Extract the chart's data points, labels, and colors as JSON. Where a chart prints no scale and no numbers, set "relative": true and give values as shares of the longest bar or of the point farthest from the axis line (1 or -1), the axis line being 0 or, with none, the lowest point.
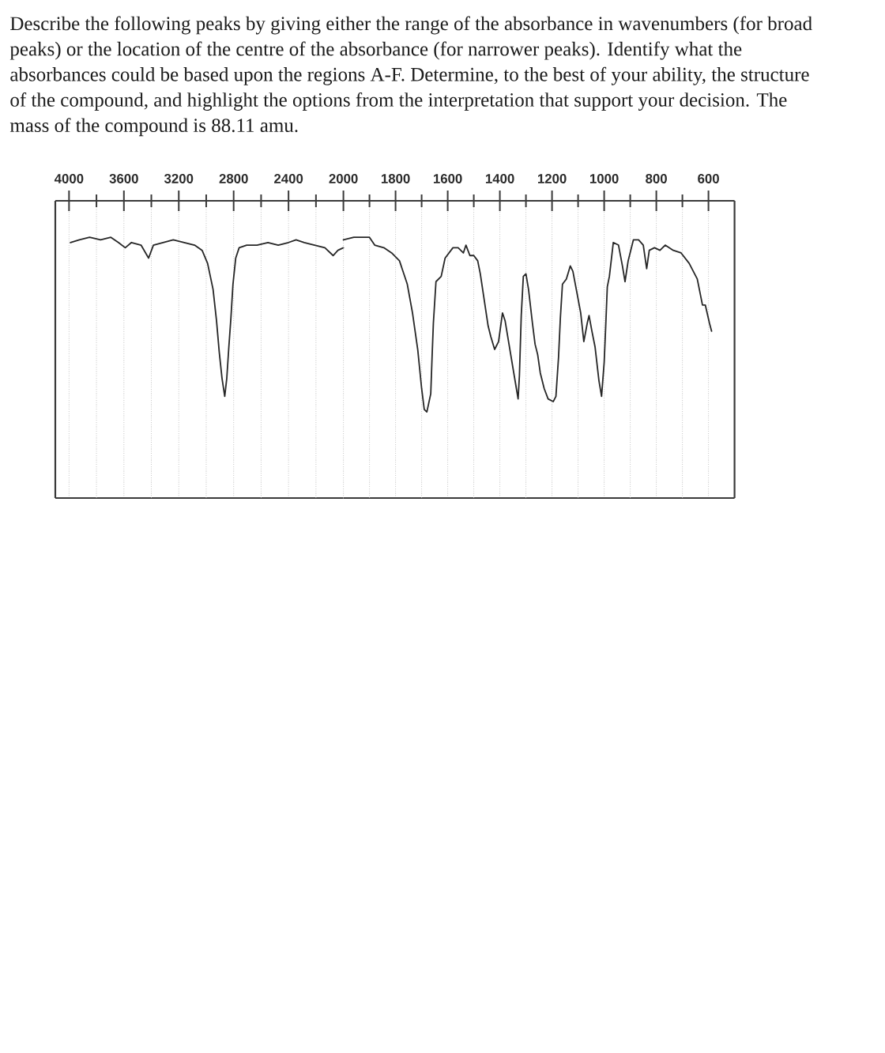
{
  "chart_data": [
    {
      "type": "line",
      "title": "Describe the following peaks by giving either the range of the absorbance in wavenumbers (for broad peaks) or the location of the centre of the absorbance (for narrower peaks). Identify what the absorbances could be based upon the regions A-F. Determine, to the best of your ability, the structure of the compound, and highlight the options from the interpretation that support your decision. The mass of the compound is 88.11 amu.",
      "relative": true,
      "color": "#262626",
      "grid": "x",
      "xlim": [
        4100,
        2000
      ],
      "xticks": [
        4000,
        {
          "value": 3800,
          "label": null
        },
        3600,
        {
          "value": 3400,
          "label": null
        },
        3200,
        {
          "value": 3000,
          "label": null
        },
        2800,
        {
          "value": 2600,
          "label": null
        },
        2400,
        {
          "value": 2200,
          "label": null
        }
      ],
      "x": [
        3990,
        3925,
        3850,
        3770,
        3695,
        3640,
        3590,
        3545,
        3475,
        3420,
        3385,
        3315,
        3240,
        3160,
        3085,
        3030,
        2990,
        2950,
        2925,
        2905,
        2885,
        2865,
        2850,
        2835,
        2820,
        2805,
        2785,
        2760,
        2705,
        2630,
        2550,
        2475,
        2400,
        2345,
        2285,
        2210,
        2135,
        2075,
        2040,
        2000
      ],
      "values": [
        0.98,
        0.99,
        1.0,
        0.99,
        1.0,
        0.98,
        0.96,
        0.98,
        0.97,
        0.92,
        0.97,
        0.98,
        0.99,
        0.98,
        0.97,
        0.95,
        0.9,
        0.8,
        0.68,
        0.56,
        0.46,
        0.39,
        0.46,
        0.58,
        0.69,
        0.82,
        0.92,
        0.96,
        0.97,
        0.97,
        0.98,
        0.97,
        0.98,
        0.99,
        0.98,
        0.97,
        0.96,
        0.93,
        0.95,
        0.96
      ]
    },
    {
      "type": "line",
      "relative": true,
      "color": "#262626",
      "grid": "x",
      "xlim": [
        2000,
        500
      ],
      "xticks": [
        2000,
        {
          "value": 1900,
          "label": null
        },
        1800,
        {
          "value": 1700,
          "label": null
        },
        1600,
        {
          "value": 1500,
          "label": null
        },
        1400,
        {
          "value": 1300,
          "label": null
        },
        1200,
        {
          "value": 1100,
          "label": null
        },
        1000,
        {
          "value": 900,
          "label": null
        },
        800,
        {
          "value": 700,
          "label": null
        },
        600
      ],
      "x": [
        2000,
        1960,
        1900,
        1880,
        1845,
        1815,
        1785,
        1755,
        1735,
        1715,
        1700,
        1690,
        1680,
        1665,
        1660,
        1655,
        1645,
        1625,
        1610,
        1580,
        1560,
        1540,
        1530,
        1515,
        1500,
        1485,
        1475,
        1460,
        1445,
        1435,
        1420,
        1405,
        1390,
        1380,
        1365,
        1345,
        1330,
        1325,
        1318,
        1310,
        1300,
        1290,
        1275,
        1265,
        1255,
        1245,
        1230,
        1215,
        1195,
        1185,
        1175,
        1168,
        1160,
        1145,
        1130,
        1120,
        1105,
        1090,
        1078,
        1065,
        1058,
        1047,
        1035,
        1020,
        1010,
        1000,
        994,
        988,
        980,
        965,
        945,
        930,
        920,
        908,
        888,
        868,
        850,
        837,
        827,
        807,
        786,
        766,
        735,
        705,
        674,
        643,
        623,
        612,
        596,
        588
      ],
      "values": [
        0.99,
        1.0,
        1.0,
        0.97,
        0.96,
        0.94,
        0.91,
        0.82,
        0.71,
        0.57,
        0.42,
        0.34,
        0.33,
        0.4,
        0.54,
        0.67,
        0.83,
        0.85,
        0.92,
        0.96,
        0.96,
        0.94,
        0.97,
        0.93,
        0.93,
        0.91,
        0.86,
        0.76,
        0.66,
        0.62,
        0.57,
        0.6,
        0.71,
        0.68,
        0.59,
        0.47,
        0.38,
        0.47,
        0.7,
        0.85,
        0.86,
        0.8,
        0.67,
        0.59,
        0.55,
        0.48,
        0.42,
        0.38,
        0.37,
        0.39,
        0.54,
        0.69,
        0.82,
        0.84,
        0.89,
        0.87,
        0.79,
        0.71,
        0.6,
        0.67,
        0.7,
        0.64,
        0.58,
        0.45,
        0.39,
        0.52,
        0.66,
        0.81,
        0.85,
        0.98,
        0.97,
        0.89,
        0.83,
        0.91,
        0.99,
        0.99,
        0.97,
        0.88,
        0.95,
        0.96,
        0.95,
        0.97,
        0.95,
        0.94,
        0.9,
        0.84,
        0.74,
        0.74,
        0.67,
        0.64
      ]
    }
  ]
}
